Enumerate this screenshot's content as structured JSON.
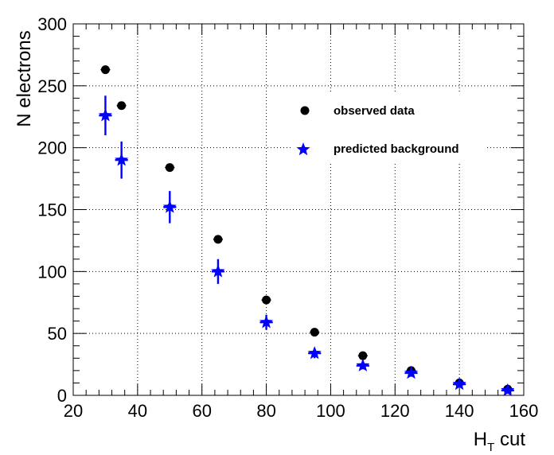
{
  "chart_data": {
    "type": "scatter",
    "xlabel_main": "H",
    "xlabel_sub": "T",
    "xlabel_rest": " cut",
    "ylabel": "N electrons",
    "xlim": [
      20,
      160
    ],
    "ylim": [
      0,
      300
    ],
    "x_ticks": [
      20,
      40,
      60,
      80,
      100,
      120,
      140,
      160
    ],
    "y_ticks": [
      0,
      50,
      100,
      150,
      200,
      250,
      300
    ],
    "grid": true,
    "legend_position": "upper-right",
    "series": [
      {
        "name": "observed data",
        "color": "#000000",
        "marker": "circle",
        "x": [
          30,
          35,
          50,
          65,
          80,
          95,
          110,
          125,
          140,
          155
        ],
        "y": [
          263,
          234,
          184,
          126,
          77,
          51,
          32,
          20,
          10,
          5
        ],
        "yerr": [
          0,
          0,
          0,
          0,
          0,
          0,
          0,
          0,
          0,
          0
        ],
        "xerr": [
          1.5,
          1.5,
          1.5,
          1.5,
          1.5,
          1.5,
          1.5,
          1.5,
          1.5,
          1.5
        ]
      },
      {
        "name": "predicted background",
        "color": "#0000ff",
        "marker": "star",
        "x": [
          30,
          35,
          50,
          65,
          80,
          95,
          110,
          125,
          140,
          155
        ],
        "y": [
          226,
          190,
          152,
          100,
          59,
          34,
          24,
          18,
          9,
          4
        ],
        "yerr": [
          16,
          15,
          13,
          10,
          6,
          4,
          3,
          3,
          2,
          2
        ],
        "xerr": [
          2,
          2,
          2,
          2,
          2,
          2,
          2,
          2,
          2,
          2
        ]
      }
    ]
  }
}
